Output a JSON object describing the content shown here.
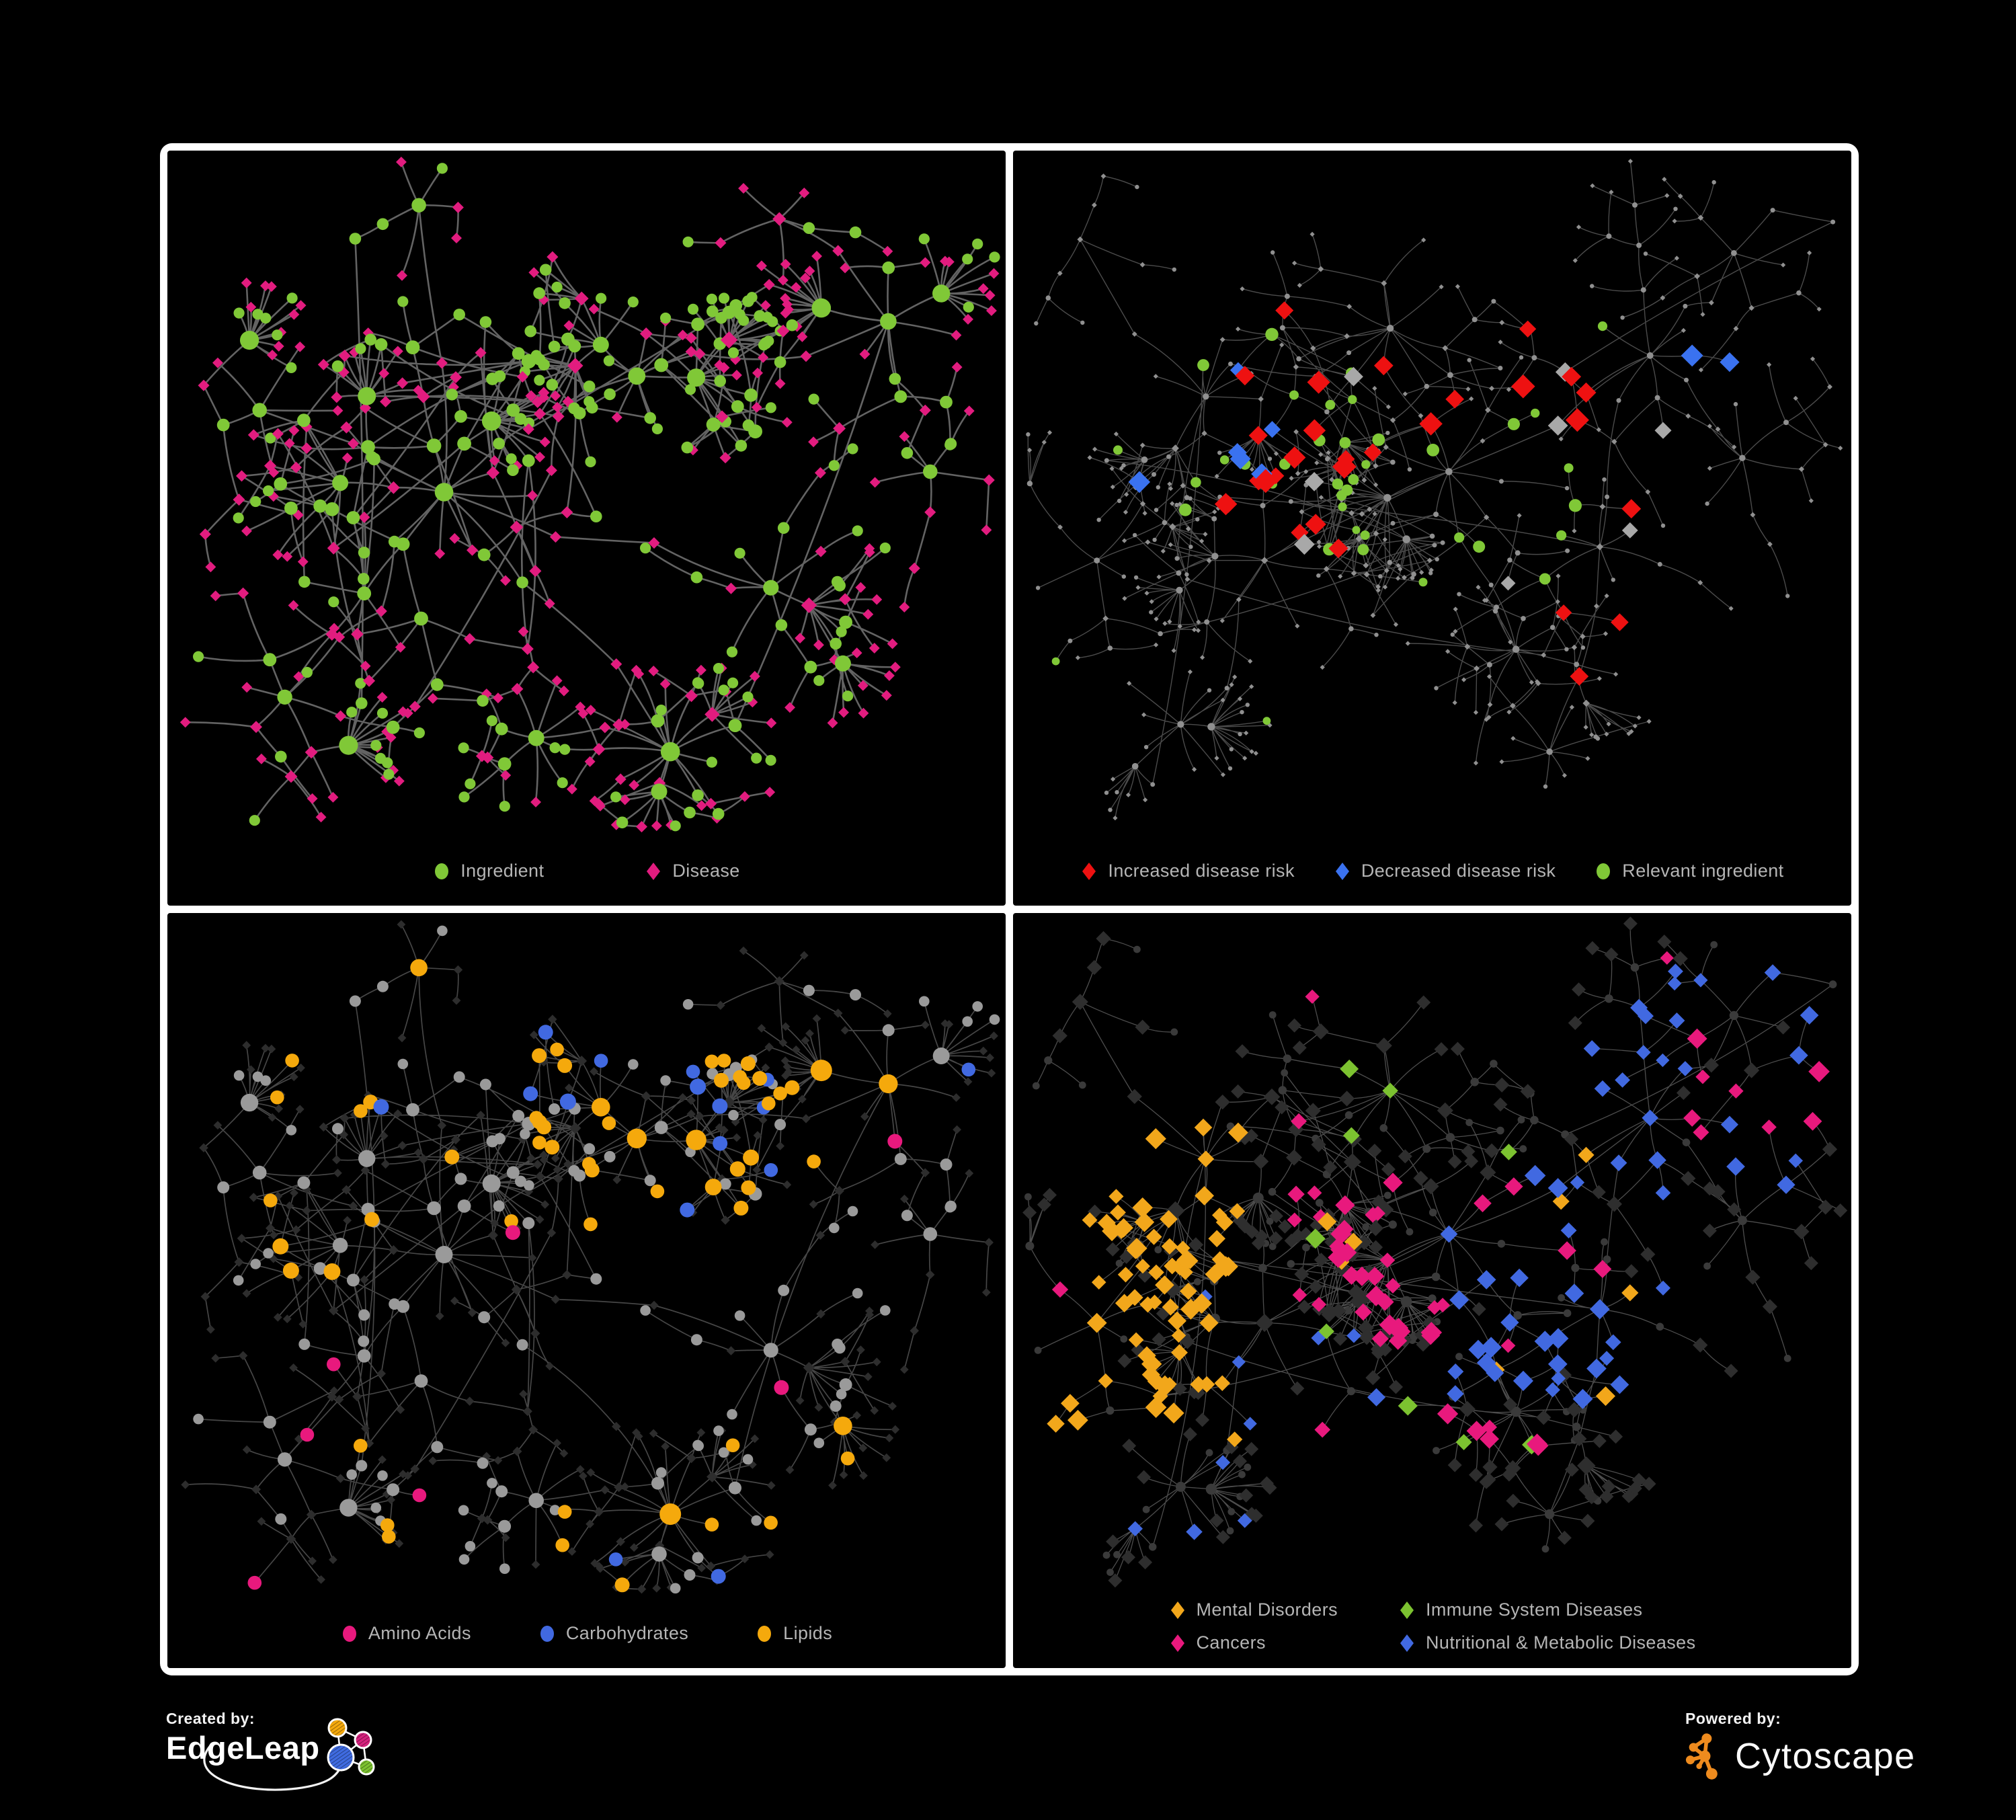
{
  "figure": {
    "background": "#000000",
    "frame_color": "#ffffff",
    "panel_background": "#000000",
    "legend_text_color": "#b5b5b5"
  },
  "chart_data": {
    "type": "network",
    "description_visible": "Four network panels of an ingredient-disease association network",
    "panel_count": 4
  },
  "panels": [
    {
      "name": "ingredient-disease-network",
      "legend": [
        {
          "label": "Ingredient",
          "shape": "circle",
          "color": "#80c837"
        },
        {
          "label": "Disease",
          "shape": "diamond",
          "color": "#e21c7f"
        }
      ],
      "style": {
        "kind": "tl",
        "layout": "A",
        "seed": 41,
        "edge_color": "#6b6b6b",
        "edge_width": 2.6,
        "edge_opacity": 0.92,
        "ingredient_color": "#80c837",
        "disease_color": "#e21c7f"
      }
    },
    {
      "name": "disease-risk-network",
      "legend": [
        {
          "label": "Increased disease risk",
          "shape": "diamond",
          "color": "#ee1111"
        },
        {
          "label": "Decreased disease risk",
          "shape": "diamond",
          "color": "#3a72f0"
        },
        {
          "label": "Relevant ingredient",
          "shape": "circle",
          "color": "#80c837"
        }
      ],
      "style": {
        "kind": "tr",
        "layout": "B",
        "seed": 55,
        "edge_color": "#5e5e5e",
        "edge_width": 1.4,
        "edge_opacity": 0.8,
        "base_node_color": "#909090",
        "highlights": [
          {
            "shape": "diamond",
            "color": "#ee1111",
            "count": 26,
            "region": [
              0.25,
              0.78,
              0.18,
              0.62
            ],
            "size": 15
          },
          {
            "shape": "diamond",
            "color": "#ee1111",
            "count": 3,
            "region": [
              0.6,
              0.95,
              0.6,
              0.82
            ],
            "size": 14
          },
          {
            "shape": "diamond",
            "color": "#3a72f0",
            "count": 6,
            "region": [
              0.15,
              0.31,
              0.28,
              0.5
            ],
            "size": 14
          },
          {
            "shape": "diamond",
            "color": "#3a72f0",
            "count": 2,
            "region": [
              0.78,
              0.93,
              0.28,
              0.45
            ],
            "size": 14
          },
          {
            "shape": "diamond",
            "color": "#a8a8a8",
            "count": 8,
            "region": [
              0.2,
              0.78,
              0.25,
              0.68
            ],
            "size": 13
          },
          {
            "shape": "circle",
            "color": "#80c837",
            "count": 32,
            "region": [
              0.2,
              0.72,
              0.2,
              0.6
            ],
            "size": 8
          },
          {
            "shape": "circle",
            "color": "#80c837",
            "count": 7,
            "region": [
              0.05,
              0.95,
              0.1,
              0.9
            ],
            "size": 7
          }
        ]
      }
    },
    {
      "name": "ingredient-category-network",
      "legend": [
        {
          "label": "Amino Acids",
          "shape": "circle",
          "color": "#e8197d"
        },
        {
          "label": "Carbohydrates",
          "shape": "circle",
          "color": "#4169e1"
        },
        {
          "label": "Lipids",
          "shape": "circle",
          "color": "#f5a90c"
        }
      ],
      "style": {
        "kind": "bl",
        "layout": "A",
        "seed": 77,
        "edge_color": "#575757",
        "edge_width": 1.7,
        "edge_opacity": 0.8,
        "default_circle_color": "#9a9a9a",
        "default_diamond_color": "#2d2d2d",
        "amino_color": "#e8197d",
        "carb_color": "#4169e1",
        "lipid_color": "#f5a90c"
      }
    },
    {
      "name": "disease-category-network",
      "legend": [
        {
          "label": "Mental Disorders",
          "shape": "diamond",
          "color": "#f2a71b"
        },
        {
          "label": "Immune System Diseases",
          "shape": "diamond",
          "color": "#7cc230"
        },
        {
          "label": "Cancers",
          "shape": "diamond",
          "color": "#e8197d"
        },
        {
          "label": "Nutritional & Metabolic Diseases",
          "shape": "diamond",
          "color": "#4169e1"
        }
      ],
      "style": {
        "kind": "br",
        "layout": "B",
        "seed": 91,
        "edge_color": "#6e6e6e",
        "edge_width": 1.3,
        "edge_opacity": 0.7,
        "default_diamond_color": "#2e2e2e",
        "default_circle_color": "#3a3a3a",
        "highlights": [
          {
            "shape": "diamond",
            "color": "#f2a71b",
            "count": 70,
            "region": [
              0.05,
              0.27,
              0.3,
              0.78
            ],
            "size": 13
          },
          {
            "shape": "diamond",
            "color": "#f2a71b",
            "count": 8,
            "region": [
              0.3,
              0.95,
              0.1,
              0.95
            ],
            "size": 12
          },
          {
            "shape": "diamond",
            "color": "#e8197d",
            "count": 44,
            "region": [
              0.33,
              0.63,
              0.38,
              0.8
            ],
            "size": 13
          },
          {
            "shape": "diamond",
            "color": "#e8197d",
            "count": 8,
            "region": [
              0.8,
              0.97,
              0.18,
              0.35
            ],
            "size": 13
          },
          {
            "shape": "diamond",
            "color": "#e8197d",
            "count": 6,
            "region": [
              0.05,
              0.95,
              0.05,
              0.95
            ],
            "size": 12
          },
          {
            "shape": "diamond",
            "color": "#4169e1",
            "count": 30,
            "region": [
              0.52,
              0.78,
              0.38,
              0.72
            ],
            "size": 13
          },
          {
            "shape": "diamond",
            "color": "#4169e1",
            "count": 22,
            "region": [
              0.68,
              0.97,
              0.08,
              0.4
            ],
            "size": 12
          },
          {
            "shape": "diamond",
            "color": "#4169e1",
            "count": 10,
            "region": [
              0.05,
              0.45,
              0.55,
              0.95
            ],
            "size": 12
          },
          {
            "shape": "diamond",
            "color": "#7cc230",
            "count": 9,
            "region": [
              0.25,
              0.75,
              0.2,
              0.8
            ],
            "size": 13
          }
        ]
      }
    }
  ],
  "footer": {
    "created_by_label": "Created by:",
    "created_by_name": "EdgeLeap",
    "powered_by_label": "Powered by:",
    "powered_by_name": "Cytoscape",
    "cytoscape_orange": "#ee8b1e",
    "edgeleap_colors": {
      "orange": "#f5a90c",
      "magenta": "#d6227e",
      "blue": "#3f6be0",
      "green": "#7cc230"
    }
  }
}
